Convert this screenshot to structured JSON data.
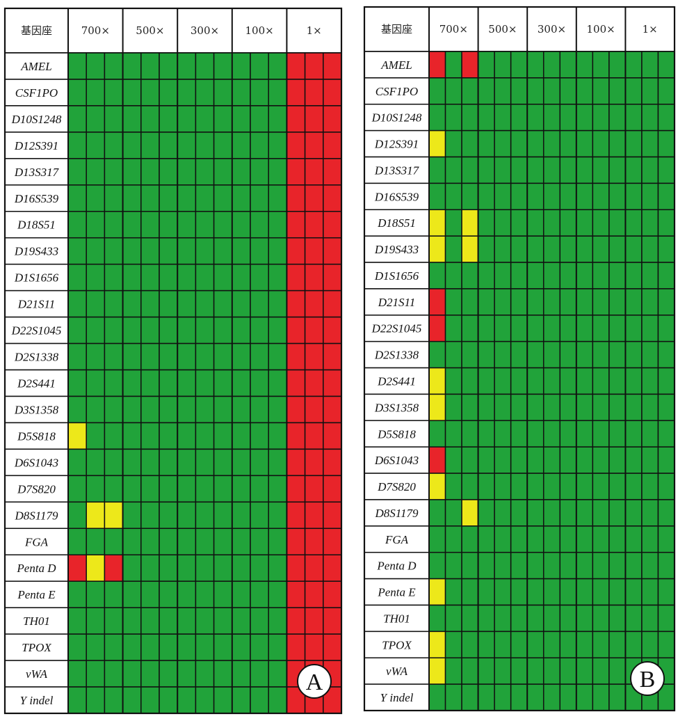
{
  "colors": {
    "green": "#21a33a",
    "yellow": "#ede81a",
    "red": "#e8242a",
    "grid": "#111111"
  },
  "chart_data": [
    {
      "type": "heatmap",
      "panel_label": "A",
      "header_first": "基因座",
      "columns": [
        "700×",
        "500×",
        "300×",
        "100×",
        "1×"
      ],
      "replicates_per_column": 3,
      "rows": [
        "AMEL",
        "CSF1PO",
        "D10S1248",
        "D12S391",
        "D13S317",
        "D16S539",
        "D18S51",
        "D19S433",
        "D1S1656",
        "D21S11",
        "D22S1045",
        "D2S1338",
        "D2S441",
        "D3S1358",
        "D5S818",
        "D6S1043",
        "D7S820",
        "D8S1179",
        "FGA",
        "Penta D",
        "Penta E",
        "TH01",
        "TPOX",
        "vWA",
        "Y indel"
      ],
      "legend_codes": {
        "G": "green",
        "Y": "yellow",
        "R": "red"
      },
      "cells": [
        "GGGGGGGGGGGGRRR",
        "GGGGGGGGGGGGRRR",
        "GGGGGGGGGGGGRRR",
        "GGGGGGGGGGGGRRR",
        "GGGGGGGGGGGGRRR",
        "GGGGGGGGGGGGRRR",
        "GGGGGGGGGGGGRRR",
        "GGGGGGGGGGGGRRR",
        "GGGGGGGGGGGGRRR",
        "GGGGGGGGGGGGRRR",
        "GGGGGGGGGGGGRRR",
        "GGGGGGGGGGGGRRR",
        "GGGGGGGGGGGGRRR",
        "GGGGGGGGGGGGRRR",
        "YGGGGGGGGGGGRRR",
        "GGGGGGGGGGGGRRR",
        "GGGGGGGGGGGGRRR",
        "GYYGGGGGGGGGRRR",
        "GGGGGGGGGGGGRRR",
        "RYRGGGGGGGGGRRR",
        "GGGGGGGGGGGGRRR",
        "GGGGGGGGGGGGRRR",
        "GGGGGGGGGGGGRRR",
        "GGGGGGGGGGGGRRR",
        "GGGGGGGGGGGGRRR"
      ]
    },
    {
      "type": "heatmap",
      "panel_label": "B",
      "header_first": "基因座",
      "columns": [
        "700×",
        "500×",
        "300×",
        "100×",
        "1×"
      ],
      "replicates_per_column": 3,
      "rows": [
        "AMEL",
        "CSF1PO",
        "D10S1248",
        "D12S391",
        "D13S317",
        "D16S539",
        "D18S51",
        "D19S433",
        "D1S1656",
        "D21S11",
        "D22S1045",
        "D2S1338",
        "D2S441",
        "D3S1358",
        "D5S818",
        "D6S1043",
        "D7S820",
        "D8S1179",
        "FGA",
        "Penta D",
        "Penta E",
        "TH01",
        "TPOX",
        "vWA",
        "Y indel"
      ],
      "legend_codes": {
        "G": "green",
        "Y": "yellow",
        "R": "red"
      },
      "cells": [
        "RGRGGGGGGGGGGGG",
        "GGGGGGGGGGGGGGG",
        "GGGGGGGGGGGGGGG",
        "YGGGGGGGGGGGGGG",
        "GGGGGGGGGGGGGGG",
        "GGGGGGGGGGGGGGG",
        "YGYGGGGGGGGGGGG",
        "YGYGGGGGGGGGGGG",
        "GGGGGGGGGGGGGGG",
        "RGGGGGGGGGGGGGG",
        "RGGGGGGGGGGGGGG",
        "GGGGGGGGGGGGGGG",
        "YGGGGGGGGGGGGGG",
        "YGGGGGGGGGGGGGG",
        "GGGGGGGGGGGGGGG",
        "RGGGGGGGGGGGGGG",
        "YGGGGGGGGGGGGGG",
        "GGYGGGGGGGGGGGG",
        "GGGGGGGGGGGGGGG",
        "GGGGGGGGGGGGGGG",
        "YGGGGGGGGGGGGGG",
        "GGGGGGGGGGGGGGG",
        "YGGGGGGGGGGGGGG",
        "YGGGGGGGGGGGGGG",
        "GGGGGGGGGGGGGGG"
      ]
    }
  ]
}
